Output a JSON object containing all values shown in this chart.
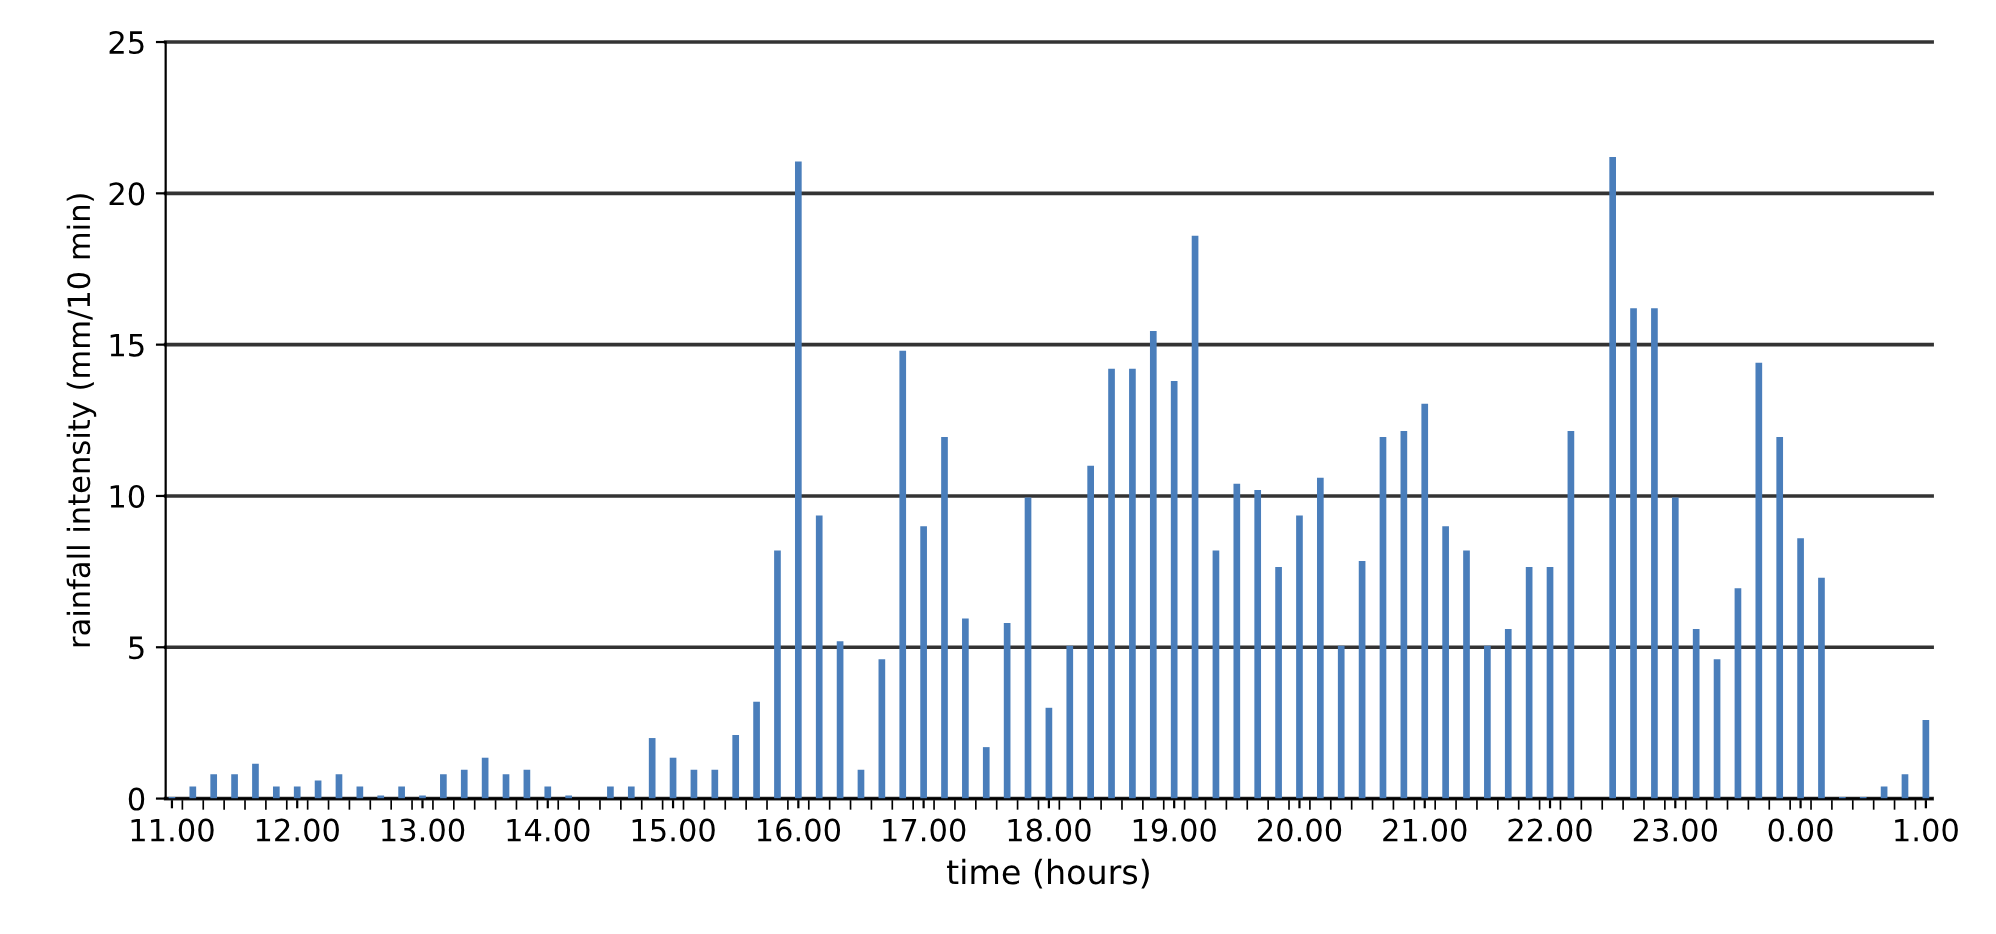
{
  "chart_data": {
    "type": "bar",
    "xlabel": "time (hours)",
    "ylabel": "rainfall intensity (mm/10 min)",
    "categories": [
      "11.00",
      null,
      null,
      null,
      null,
      null,
      "12.00",
      null,
      null,
      null,
      null,
      null,
      "13.00",
      null,
      null,
      null,
      null,
      null,
      "14.00",
      null,
      null,
      null,
      null,
      null,
      "15.00",
      null,
      null,
      null,
      null,
      null,
      "16.00",
      null,
      null,
      null,
      null,
      null,
      "17.00",
      null,
      null,
      null,
      null,
      null,
      "18.00",
      null,
      null,
      null,
      null,
      null,
      "19.00",
      null,
      null,
      null,
      null,
      null,
      "20.00",
      null,
      null,
      null,
      null,
      null,
      "21.00",
      null,
      null,
      null,
      null,
      null,
      "22.00",
      null,
      null,
      null,
      null,
      null,
      "23.00",
      null,
      null,
      null,
      null,
      null,
      "0.00",
      null,
      null,
      null,
      null,
      null,
      "1.00"
    ],
    "values": [
      0.05,
      0.4,
      0.8,
      0.8,
      1.15,
      0.4,
      0.4,
      0.6,
      0.8,
      0.4,
      0.1,
      0.4,
      0.1,
      0.8,
      0.95,
      1.35,
      0.8,
      0.95,
      0.4,
      0.1,
      0,
      0.4,
      0.4,
      2.0,
      1.35,
      0.95,
      0.95,
      2.1,
      3.2,
      8.2,
      21.05,
      9.35,
      5.2,
      0.95,
      4.6,
      14.8,
      9.0,
      11.95,
      5.95,
      1.7,
      5.8,
      9.95,
      3.0,
      5.05,
      11.0,
      14.2,
      14.2,
      15.45,
      13.8,
      18.6,
      8.2,
      10.4,
      10.2,
      7.65,
      9.35,
      10.6,
      5.05,
      7.85,
      11.95,
      12.15,
      13.05,
      9.0,
      8.2,
      5.05,
      5.6,
      7.65,
      7.65,
      12.15,
      0,
      21.2,
      16.2,
      16.2,
      9.95,
      5.6,
      4.6,
      6.95,
      14.4,
      11.95,
      8.6,
      7.3,
      0.05,
      0.05,
      0.4,
      0.8,
      2.6
    ],
    "color": "#4a7ebb",
    "ylim": [
      0,
      25
    ],
    "yticks": [
      0,
      5,
      10,
      15,
      20,
      25
    ],
    "grid": "y",
    "legend": false
  }
}
